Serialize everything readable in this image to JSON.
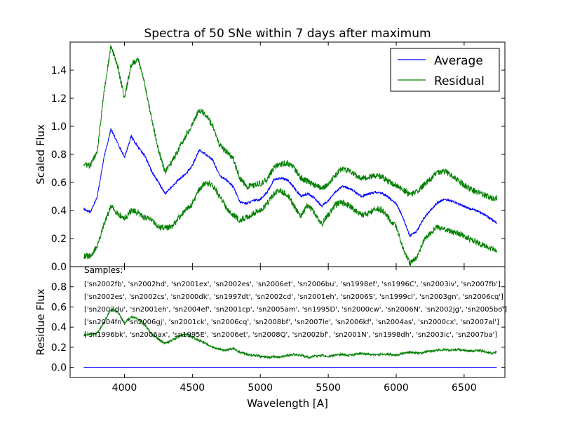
{
  "figure": {
    "title": "Spectra of 50 SNe within 7 days after maximum",
    "legend_placement": "top-right",
    "samples_label": "Samples:",
    "samples_lines": [
      "['sn2002fb', 'sn2002hd', 'sn2001ex', 'sn2002es', 'sn2006et', 'sn2006bu', 'sn1998ef', 'sn1996C', 'sn2003iv', 'sn2007fb']",
      "['sn2002es', 'sn2002cs', 'sn2000dk', 'sn1997dt', 'sn2002cd', 'sn2001eh', 'sn2006S', 'sn1999cl', 'sn2003gn', 'sn2006cq']",
      "['sn2002du', 'sn2001eh', 'sn2004ef', 'sn2001cp', 'sn2005am', 'sn1995D', 'sn2000cw', 'sn2006N', 'sn2002jg', 'sn2005bo']",
      "['sn2004fn', 'sn2006gj', 'sn2001ck', 'sn2006cq', 'sn2008bf', 'sn2007le', 'sn2006kf', 'sn2004as', 'sn2000cx', 'sn2007al']",
      "['sn1996bk', 'sn2006ax', 'sn1995E', 'sn2006et', 'sn2008Q', 'sn2002bf', 'sn2001N', 'sn1998dh', 'sn2003ic', 'sn2007ba']"
    ]
  },
  "chart_data": [
    {
      "type": "line",
      "panel": "top",
      "title": "Spectra of 50 SNe within 7 days after maximum",
      "xlabel": "Wavelength [A]",
      "ylabel": "Scaled Flux",
      "xlim": [
        3600,
        6800
      ],
      "ylim": [
        0.0,
        1.6
      ],
      "xticks": [
        4000,
        4500,
        5000,
        5500,
        6000,
        6500
      ],
      "yticks": [
        0.0,
        0.2,
        0.4,
        0.6,
        0.8,
        1.0,
        1.2,
        1.4
      ],
      "grid": false,
      "legend": [
        "Average",
        "Residual"
      ],
      "colors": {
        "Average": "#0000ff",
        "Residual": "#008000"
      },
      "series": [
        {
          "name": "Average",
          "color": "#0000ff",
          "noise": 0.008,
          "x": [
            3700,
            3750,
            3800,
            3850,
            3900,
            3950,
            4000,
            4050,
            4100,
            4150,
            4200,
            4250,
            4300,
            4350,
            4400,
            4450,
            4500,
            4550,
            4600,
            4650,
            4700,
            4750,
            4800,
            4850,
            4900,
            4950,
            5000,
            5050,
            5100,
            5150,
            5200,
            5250,
            5300,
            5350,
            5400,
            5450,
            5500,
            5550,
            5600,
            5650,
            5700,
            5750,
            5800,
            5850,
            5900,
            5950,
            6000,
            6050,
            6100,
            6150,
            6200,
            6250,
            6300,
            6350,
            6400,
            6450,
            6500,
            6550,
            6600,
            6650,
            6700,
            6740
          ],
          "y": [
            0.41,
            0.39,
            0.5,
            0.78,
            0.98,
            0.88,
            0.78,
            0.93,
            0.85,
            0.79,
            0.68,
            0.6,
            0.52,
            0.57,
            0.62,
            0.66,
            0.72,
            0.83,
            0.8,
            0.76,
            0.65,
            0.62,
            0.57,
            0.46,
            0.45,
            0.47,
            0.48,
            0.53,
            0.62,
            0.63,
            0.62,
            0.56,
            0.5,
            0.52,
            0.49,
            0.43,
            0.47,
            0.53,
            0.57,
            0.56,
            0.53,
            0.5,
            0.52,
            0.53,
            0.52,
            0.49,
            0.45,
            0.35,
            0.22,
            0.25,
            0.34,
            0.4,
            0.45,
            0.48,
            0.47,
            0.45,
            0.43,
            0.41,
            0.4,
            0.37,
            0.34,
            0.31
          ]
        },
        {
          "name": "Residual (upper)",
          "color": "#008000",
          "noise": 0.022,
          "x": [
            3700,
            3750,
            3800,
            3850,
            3900,
            3950,
            4000,
            4050,
            4100,
            4150,
            4200,
            4250,
            4300,
            4350,
            4400,
            4450,
            4500,
            4550,
            4600,
            4650,
            4700,
            4750,
            4800,
            4850,
            4900,
            4950,
            5000,
            5050,
            5100,
            5150,
            5200,
            5250,
            5300,
            5350,
            5400,
            5450,
            5500,
            5550,
            5600,
            5650,
            5700,
            5750,
            5800,
            5850,
            5900,
            5950,
            6000,
            6050,
            6100,
            6150,
            6200,
            6250,
            6300,
            6350,
            6400,
            6450,
            6500,
            6550,
            6600,
            6650,
            6700,
            6740
          ],
          "y": [
            0.73,
            0.72,
            0.83,
            1.25,
            1.57,
            1.43,
            1.2,
            1.44,
            1.48,
            1.3,
            1.05,
            0.83,
            0.67,
            0.75,
            0.84,
            0.93,
            1.02,
            1.12,
            1.08,
            1.0,
            0.86,
            0.82,
            0.77,
            0.63,
            0.57,
            0.58,
            0.59,
            0.62,
            0.71,
            0.73,
            0.74,
            0.7,
            0.63,
            0.61,
            0.58,
            0.56,
            0.58,
            0.65,
            0.7,
            0.68,
            0.65,
            0.63,
            0.64,
            0.65,
            0.64,
            0.6,
            0.58,
            0.55,
            0.51,
            0.53,
            0.58,
            0.62,
            0.67,
            0.68,
            0.66,
            0.62,
            0.58,
            0.55,
            0.53,
            0.51,
            0.49,
            0.49
          ]
        },
        {
          "name": "Residual (lower)",
          "color": "#008000",
          "noise": 0.022,
          "x": [
            3700,
            3750,
            3800,
            3850,
            3900,
            3950,
            4000,
            4050,
            4100,
            4150,
            4200,
            4250,
            4300,
            4350,
            4400,
            4450,
            4500,
            4550,
            4600,
            4650,
            4700,
            4750,
            4800,
            4850,
            4900,
            4950,
            5000,
            5050,
            5100,
            5150,
            5200,
            5250,
            5300,
            5350,
            5400,
            5450,
            5500,
            5550,
            5600,
            5650,
            5700,
            5750,
            5800,
            5850,
            5900,
            5950,
            6000,
            6050,
            6100,
            6150,
            6200,
            6250,
            6300,
            6350,
            6400,
            6450,
            6500,
            6550,
            6600,
            6650,
            6700,
            6740
          ],
          "y": [
            0.08,
            0.07,
            0.15,
            0.3,
            0.43,
            0.38,
            0.34,
            0.4,
            0.38,
            0.35,
            0.34,
            0.28,
            0.28,
            0.28,
            0.35,
            0.4,
            0.45,
            0.55,
            0.6,
            0.58,
            0.5,
            0.42,
            0.37,
            0.33,
            0.35,
            0.38,
            0.4,
            0.45,
            0.52,
            0.54,
            0.51,
            0.43,
            0.36,
            0.44,
            0.38,
            0.3,
            0.37,
            0.44,
            0.46,
            0.44,
            0.4,
            0.37,
            0.38,
            0.42,
            0.4,
            0.34,
            0.28,
            0.13,
            0.02,
            0.06,
            0.18,
            0.24,
            0.28,
            0.27,
            0.25,
            0.24,
            0.22,
            0.19,
            0.17,
            0.15,
            0.13,
            0.12
          ]
        }
      ]
    },
    {
      "type": "line",
      "panel": "bottom",
      "xlabel": "Wavelength [A]",
      "ylabel": "Residue Flux",
      "xlim": [
        3600,
        6800
      ],
      "ylim": [
        -0.1,
        1.0
      ],
      "xticks": [
        4000,
        4500,
        5000,
        5500,
        6000,
        6500
      ],
      "yticks": [
        0.0,
        0.2,
        0.4,
        0.6,
        0.8
      ],
      "grid": false,
      "series": [
        {
          "name": "Average",
          "color": "#0000ff",
          "noise": 0,
          "x": [
            3700,
            6740
          ],
          "y": [
            0.0,
            0.0
          ]
        },
        {
          "name": "Residual",
          "color": "#008000",
          "noise": 0.012,
          "x": [
            3700,
            3750,
            3800,
            3850,
            3900,
            3950,
            4000,
            4050,
            4100,
            4150,
            4200,
            4250,
            4300,
            4350,
            4400,
            4450,
            4500,
            4550,
            4600,
            4650,
            4700,
            4750,
            4800,
            4850,
            4900,
            4950,
            5000,
            5050,
            5100,
            5150,
            5200,
            5250,
            5300,
            5350,
            5400,
            5450,
            5500,
            5550,
            5600,
            5650,
            5700,
            5750,
            5800,
            5850,
            5900,
            5950,
            6000,
            6050,
            6100,
            6150,
            6200,
            6250,
            6300,
            6350,
            6400,
            6450,
            6500,
            6550,
            6600,
            6650,
            6700,
            6740
          ],
          "y": [
            0.32,
            0.33,
            0.34,
            0.45,
            0.58,
            0.55,
            0.44,
            0.5,
            0.48,
            0.42,
            0.33,
            0.28,
            0.24,
            0.27,
            0.31,
            0.33,
            0.3,
            0.27,
            0.24,
            0.2,
            0.18,
            0.17,
            0.19,
            0.15,
            0.13,
            0.12,
            0.11,
            0.1,
            0.11,
            0.1,
            0.12,
            0.13,
            0.12,
            0.1,
            0.11,
            0.12,
            0.11,
            0.12,
            0.13,
            0.12,
            0.13,
            0.14,
            0.13,
            0.12,
            0.13,
            0.13,
            0.12,
            0.14,
            0.15,
            0.14,
            0.15,
            0.16,
            0.17,
            0.18,
            0.17,
            0.18,
            0.17,
            0.16,
            0.17,
            0.16,
            0.14,
            0.15
          ]
        }
      ]
    }
  ]
}
